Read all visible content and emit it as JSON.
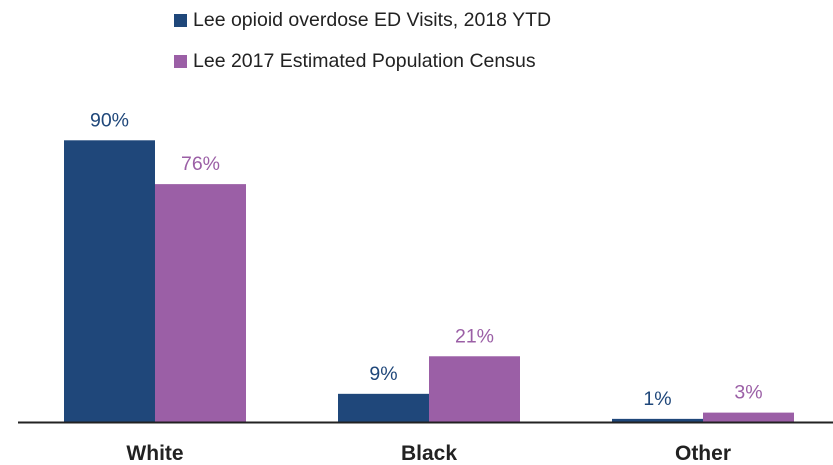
{
  "colors": {
    "series_0": "#1f477a",
    "series_1": "#9b5fa6",
    "axis": "#222222",
    "background": "#ffffff"
  },
  "chart_data": {
    "type": "bar",
    "title": "",
    "xlabel": "",
    "ylabel": "",
    "categories": [
      "White",
      "Black",
      "Other"
    ],
    "series": [
      {
        "name": "Lee opioid overdose ED Visits, 2018 YTD",
        "values": [
          90,
          9,
          1
        ],
        "labels": [
          "90%",
          "9%",
          "1%"
        ]
      },
      {
        "name": "Lee 2017 Estimated Population Census",
        "values": [
          76,
          21,
          3
        ],
        "labels": [
          "76%",
          "21%",
          "3%"
        ]
      }
    ],
    "ylim": [
      0,
      100
    ],
    "grid": false,
    "legend": "top-center"
  }
}
